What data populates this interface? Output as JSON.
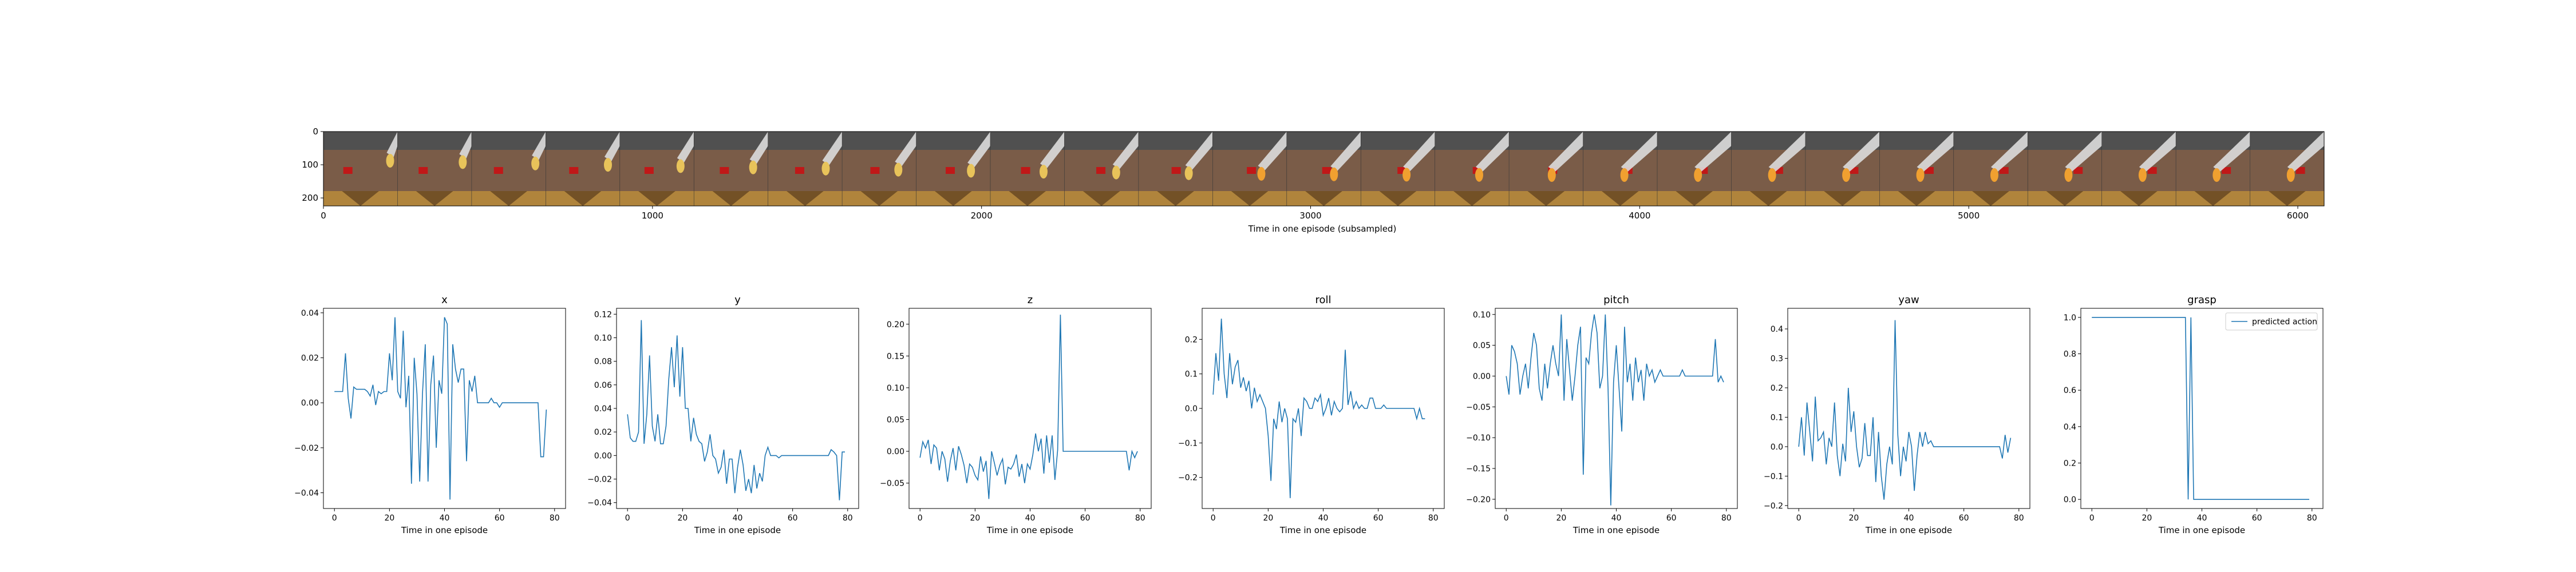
{
  "filmstrip": {
    "xlabel": "Time in one episode (subsampled)",
    "x_ticks": [
      0,
      1000,
      2000,
      3000,
      4000,
      5000,
      6000
    ],
    "y_ticks": [
      0,
      100,
      200
    ],
    "xlim": [
      0,
      6080
    ],
    "ylim": [
      224,
      0
    ],
    "frames": 27,
    "colors": {
      "sky": "#505050",
      "table": "#7a5c48",
      "cube": "#c01818",
      "robot": "#dcdcdc",
      "held_object": "#e8c35a"
    }
  },
  "legend": {
    "label": "predicted action"
  },
  "chart_data": [
    {
      "type": "line",
      "title": "x",
      "xlabel": "Time in one episode",
      "xlim": [
        -4,
        84
      ],
      "ylim": [
        -0.047,
        0.042
      ],
      "x_ticks": [
        0,
        20,
        40,
        60,
        80
      ],
      "y_ticks": [
        "−0.04",
        "−0.02",
        "0.00",
        "0.02",
        "0.04"
      ],
      "y_tick_values": [
        -0.04,
        -0.02,
        0,
        0.02,
        0.04
      ],
      "values": [
        0.005,
        0.005,
        0.005,
        0.005,
        0.022,
        0.002,
        -0.007,
        0.007,
        0.006,
        0.006,
        0.006,
        0.006,
        0.005,
        0.003,
        0.008,
        -0.001,
        0.005,
        0.004,
        0.005,
        0.005,
        0.022,
        0.01,
        0.038,
        0.005,
        0.002,
        0.032,
        -0.002,
        0.012,
        -0.036,
        0.02,
        0.004,
        -0.035,
        0.004,
        0.026,
        -0.035,
        0.008,
        0.021,
        -0.02,
        0.01,
        0.004,
        0.038,
        0.035,
        -0.043,
        0.026,
        0.015,
        0.009,
        0.015,
        0.015,
        -0.026,
        0.01,
        0.005,
        0.012,
        0.0,
        0.0,
        0.0,
        0.0,
        0.0,
        0.002,
        0.0,
        0.0,
        -0.002,
        0.0,
        0.0,
        0.0,
        0.0,
        0.0,
        0.0,
        0.0,
        0.0,
        0.0,
        0.0,
        0.0,
        0.0,
        0.0,
        0.0,
        -0.024,
        -0.024,
        -0.003
      ]
    },
    {
      "type": "line",
      "title": "y",
      "xlabel": "Time in one episode",
      "xlim": [
        -4,
        84
      ],
      "ylim": [
        -0.045,
        0.125
      ],
      "x_ticks": [
        0,
        20,
        40,
        60,
        80
      ],
      "y_ticks": [
        "−0.04",
        "−0.02",
        "0.00",
        "0.02",
        "0.04",
        "0.06",
        "0.08",
        "0.10",
        "0.12"
      ],
      "y_tick_values": [
        -0.04,
        -0.02,
        0,
        0.02,
        0.04,
        0.06,
        0.08,
        0.1,
        0.12
      ],
      "values": [
        0.035,
        0.015,
        0.012,
        0.012,
        0.02,
        0.115,
        0.01,
        0.035,
        0.085,
        0.025,
        0.012,
        0.035,
        0.01,
        0.01,
        0.025,
        0.065,
        0.092,
        0.058,
        0.102,
        0.05,
        0.092,
        0.04,
        0.04,
        0.012,
        0.032,
        0.018,
        0.012,
        0.01,
        -0.005,
        0.003,
        0.018,
        0.0,
        -0.003,
        -0.015,
        -0.01,
        0.005,
        -0.024,
        -0.003,
        -0.003,
        -0.032,
        -0.01,
        0.005,
        -0.008,
        -0.03,
        -0.02,
        -0.032,
        -0.008,
        -0.028,
        -0.015,
        -0.022,
        0.0,
        0.007,
        0.0,
        0.0,
        0.0,
        -0.002,
        0.0,
        0.0,
        0.0,
        0.0,
        0.0,
        0.0,
        0.0,
        0.0,
        0.0,
        0.0,
        0.0,
        0.0,
        0.0,
        0.0,
        0.0,
        0.0,
        0.0,
        0.0,
        0.005,
        0.003,
        0.0,
        -0.038,
        0.003,
        0.003
      ]
    },
    {
      "type": "line",
      "title": "z",
      "xlabel": "Time in one episode",
      "xlim": [
        -4,
        84
      ],
      "ylim": [
        -0.09,
        0.225
      ],
      "x_ticks": [
        0,
        20,
        40,
        60,
        80
      ],
      "y_ticks": [
        "−0.05",
        "0.00",
        "0.05",
        "0.10",
        "0.15",
        "0.20"
      ],
      "y_tick_values": [
        -0.05,
        0,
        0.05,
        0.1,
        0.15,
        0.2
      ],
      "values": [
        -0.01,
        0.015,
        0.005,
        0.018,
        -0.02,
        0.01,
        0.005,
        -0.03,
        0.0,
        -0.012,
        -0.048,
        -0.015,
        0.005,
        -0.03,
        0.008,
        -0.005,
        -0.022,
        -0.05,
        -0.02,
        -0.025,
        -0.038,
        -0.045,
        -0.008,
        -0.032,
        -0.015,
        -0.075,
        0.0,
        -0.018,
        -0.038,
        -0.022,
        -0.012,
        -0.052,
        -0.025,
        -0.028,
        -0.02,
        -0.005,
        -0.04,
        -0.02,
        -0.05,
        -0.02,
        -0.028,
        -0.005,
        0.028,
        0.0,
        0.02,
        -0.035,
        0.025,
        -0.018,
        0.025,
        -0.045,
        0.002,
        0.215,
        0.0,
        0.0,
        0.0,
        0.0,
        0.0,
        0.0,
        0.0,
        0.0,
        0.0,
        0.0,
        0.0,
        0.0,
        0.0,
        0.0,
        0.0,
        0.0,
        0.0,
        0.0,
        0.0,
        0.0,
        0.0,
        0.0,
        0.0,
        0.0,
        -0.03,
        0.0,
        -0.01,
        0.0
      ]
    },
    {
      "type": "line",
      "title": "roll",
      "xlabel": "Time in one episode",
      "xlim": [
        -4,
        84
      ],
      "ylim": [
        -0.29,
        0.29
      ],
      "x_ticks": [
        0,
        20,
        40,
        60,
        80
      ],
      "y_ticks": [
        "−0.2",
        "−0.1",
        "0.0",
        "0.1",
        "0.2"
      ],
      "y_tick_values": [
        -0.2,
        -0.1,
        0,
        0.1,
        0.2
      ],
      "values": [
        0.04,
        0.16,
        0.08,
        0.26,
        0.1,
        0.03,
        0.16,
        0.07,
        0.12,
        0.14,
        0.06,
        0.09,
        0.05,
        0.08,
        0.0,
        0.06,
        0.02,
        0.04,
        0.02,
        0.0,
        -0.08,
        -0.21,
        -0.03,
        -0.06,
        0.02,
        -0.04,
        0.0,
        -0.03,
        -0.26,
        -0.03,
        -0.04,
        0.0,
        -0.08,
        0.03,
        0.02,
        0.0,
        0.0,
        0.03,
        0.02,
        0.04,
        -0.02,
        0.0,
        0.03,
        -0.02,
        0.02,
        0.0,
        -0.01,
        0.0,
        0.17,
        0.01,
        0.05,
        0.0,
        0.02,
        0.0,
        0.01,
        0.0,
        0.0,
        0.03,
        0.03,
        0.0,
        0.0,
        0.0,
        0.01,
        0.0,
        0.0,
        0.0,
        0.0,
        0.0,
        0.0,
        0.0,
        0.0,
        0.0,
        0.0,
        0.0,
        -0.03,
        0.0,
        -0.03,
        -0.03
      ]
    },
    {
      "type": "line",
      "title": "pitch",
      "xlabel": "Time in one episode",
      "xlim": [
        -4,
        84
      ],
      "ylim": [
        -0.215,
        0.11
      ],
      "x_ticks": [
        0,
        20,
        40,
        60,
        80
      ],
      "y_ticks": [
        "−0.20",
        "−0.15",
        "−0.10",
        "−0.05",
        "0.00",
        "0.05",
        "0.10"
      ],
      "y_tick_values": [
        -0.2,
        -0.15,
        -0.1,
        -0.05,
        0,
        0.05,
        0.1
      ],
      "values": [
        0.0,
        -0.03,
        0.05,
        0.04,
        0.02,
        -0.03,
        0.0,
        0.02,
        -0.02,
        0.03,
        0.07,
        0.05,
        -0.02,
        -0.04,
        0.02,
        -0.02,
        0.02,
        0.05,
        0.02,
        0.0,
        0.1,
        -0.04,
        0.06,
        0.01,
        -0.04,
        0.0,
        0.05,
        0.08,
        -0.16,
        0.03,
        0.02,
        0.07,
        0.1,
        0.07,
        -0.02,
        0.0,
        0.1,
        -0.02,
        -0.21,
        -0.01,
        0.05,
        -0.02,
        -0.09,
        0.08,
        -0.01,
        0.02,
        -0.04,
        0.03,
        -0.01,
        0.01,
        -0.04,
        0.02,
        0.0,
        0.01,
        -0.01,
        0.0,
        0.01,
        0.0,
        0.0,
        0.0,
        0.0,
        0.0,
        0.0,
        0.0,
        0.01,
        0.0,
        0.0,
        0.0,
        0.0,
        0.0,
        0.0,
        0.0,
        0.0,
        0.0,
        0.0,
        0.0,
        0.06,
        -0.01,
        0.0,
        -0.01
      ]
    },
    {
      "type": "line",
      "title": "yaw",
      "xlabel": "Time in one episode",
      "xlim": [
        -4,
        84
      ],
      "ylim": [
        -0.21,
        0.47
      ],
      "x_ticks": [
        0,
        20,
        40,
        60,
        80
      ],
      "y_ticks": [
        "−0.2",
        "−0.1",
        "0.0",
        "0.1",
        "0.2",
        "0.3",
        "0.4"
      ],
      "y_tick_values": [
        -0.2,
        -0.1,
        0,
        0.1,
        0.2,
        0.3,
        0.4
      ],
      "values": [
        0.0,
        0.1,
        -0.03,
        0.15,
        0.05,
        -0.05,
        0.17,
        0.02,
        0.03,
        0.05,
        -0.06,
        0.03,
        0.0,
        0.15,
        -0.03,
        -0.1,
        0.01,
        -0.05,
        0.2,
        0.05,
        0.12,
        0.0,
        -0.07,
        -0.04,
        0.08,
        -0.03,
        -0.03,
        0.1,
        -0.12,
        0.05,
        -0.1,
        -0.18,
        -0.06,
        0.0,
        -0.06,
        0.43,
        0.04,
        -0.1,
        0.0,
        -0.05,
        0.05,
        0.0,
        -0.15,
        -0.03,
        0.05,
        0.0,
        0.05,
        0.01,
        0.02,
        0.0,
        0.0,
        0.0,
        0.0,
        0.0,
        0.0,
        0.0,
        0.0,
        0.0,
        0.0,
        0.0,
        0.0,
        0.0,
        0.0,
        0.0,
        0.0,
        0.0,
        0.0,
        0.0,
        0.0,
        0.0,
        0.0,
        0.0,
        0.0,
        0.0,
        -0.04,
        0.04,
        -0.02,
        0.03
      ]
    },
    {
      "type": "line",
      "title": "grasp",
      "xlabel": "Time in one episode",
      "xlim": [
        -4,
        84
      ],
      "ylim": [
        -0.05,
        1.05
      ],
      "x_ticks": [
        0,
        20,
        40,
        60,
        80
      ],
      "y_ticks": [
        "0.0",
        "0.2",
        "0.4",
        "0.6",
        "0.8",
        "1.0"
      ],
      "y_tick_values": [
        0,
        0.2,
        0.4,
        0.6,
        0.8,
        1.0
      ],
      "series_name": "predicted action",
      "values": [
        1,
        1,
        1,
        1,
        1,
        1,
        1,
        1,
        1,
        1,
        1,
        1,
        1,
        1,
        1,
        1,
        1,
        1,
        1,
        1,
        1,
        1,
        1,
        1,
        1,
        1,
        1,
        1,
        1,
        1,
        1,
        1,
        1,
        1,
        1,
        0,
        1,
        0,
        0,
        0,
        0,
        0,
        0,
        0,
        0,
        0,
        0,
        0,
        0,
        0,
        0,
        0,
        0,
        0,
        0,
        0,
        0,
        0,
        0,
        0,
        0,
        0,
        0,
        0,
        0,
        0,
        0,
        0,
        0,
        0,
        0,
        0,
        0,
        0,
        0,
        0,
        0,
        0,
        0,
        0
      ]
    }
  ]
}
